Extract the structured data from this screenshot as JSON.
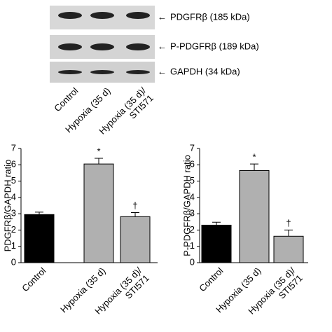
{
  "blot": {
    "bands": [
      "PDGFRβ (185 kDa)",
      "P-PDGFRβ (189 kDa)",
      "GAPDH (34 kDa)"
    ],
    "lanes": [
      "Control",
      "Hypoxia (35 d)",
      "Hypoxia (35 d)/ STI571"
    ]
  },
  "chart_data": [
    {
      "type": "bar",
      "ylabel": "PDGFRβ/GAPDH ratio",
      "categories": [
        "Control",
        "Hypoxia (35 d)",
        "Hypoxia (35 d)/ STI571"
      ],
      "values": [
        2.95,
        6.05,
        2.82
      ],
      "errors": [
        0.15,
        0.35,
        0.25
      ],
      "bar_labels": [
        null,
        "*",
        "†"
      ],
      "colors": [
        "#000000",
        "#b0b0b0",
        "#b0b0b0"
      ],
      "ylim": [
        0,
        7
      ],
      "yticks": [
        0,
        1,
        2,
        3,
        4,
        5,
        6,
        7
      ]
    },
    {
      "type": "bar",
      "ylabel": "P-PDGFRβ/GAPDH ratio",
      "categories": [
        "Control",
        "Hypoxia (35 d)",
        "Hypoxia (35 d)/ STI571"
      ],
      "values": [
        2.3,
        5.65,
        1.62
      ],
      "errors": [
        0.18,
        0.4,
        0.38
      ],
      "bar_labels": [
        null,
        "*",
        "†"
      ],
      "colors": [
        "#000000",
        "#b0b0b0",
        "#b0b0b0"
      ],
      "ylim": [
        0,
        7
      ],
      "yticks": [
        0,
        1,
        2,
        3,
        4,
        5,
        6,
        7
      ]
    }
  ]
}
